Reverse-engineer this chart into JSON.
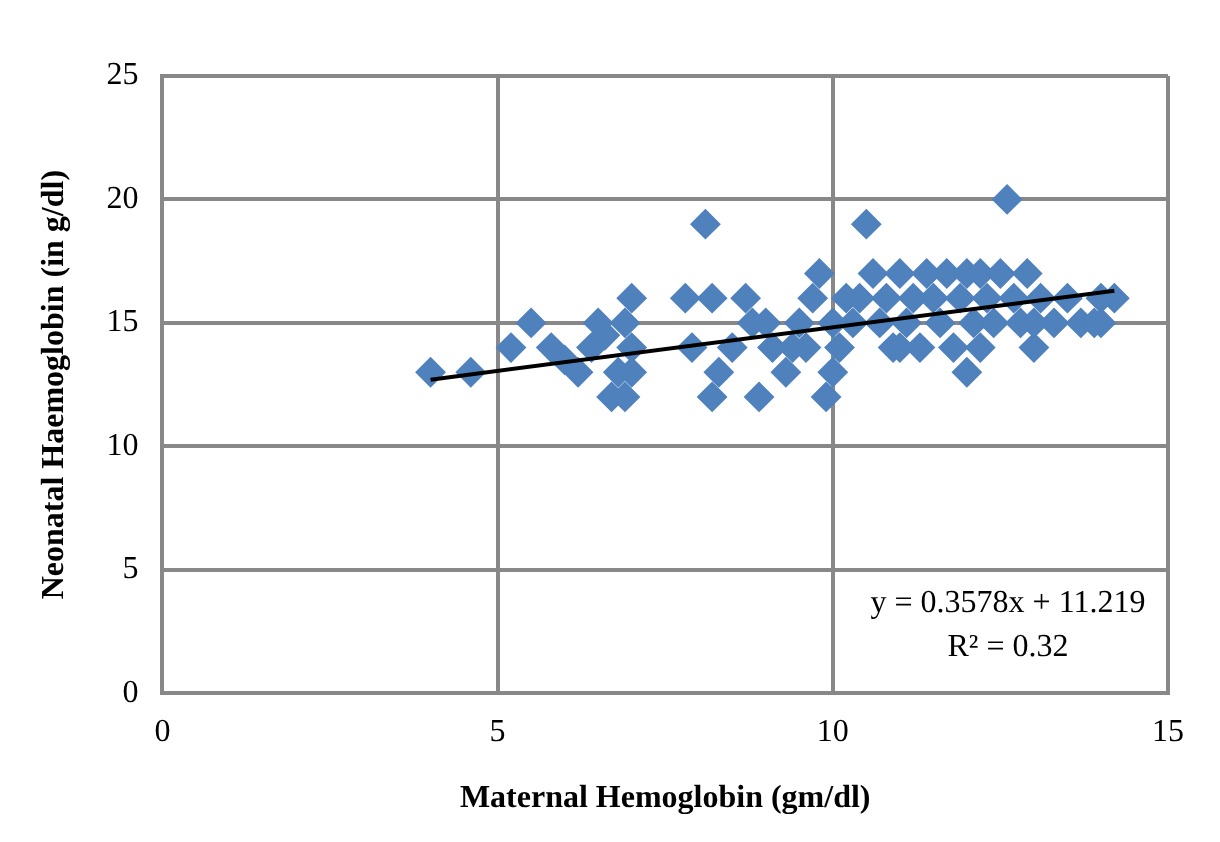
{
  "chart_data": {
    "type": "scatter",
    "xlabel": "Maternal Hemoglobin (gm/dl)",
    "ylabel": "Neonatal Haemoglobin (in g/dl)",
    "xlim": [
      0,
      15
    ],
    "xticks": [
      0,
      5,
      10,
      15
    ],
    "ylim": [
      0,
      25
    ],
    "yticks": [
      0,
      5,
      10,
      15,
      20,
      25
    ],
    "grid": true,
    "legend": false,
    "marker": "diamond",
    "annotations": [
      "y = 0.3578x + 11.219",
      "R² = 0.32"
    ],
    "series": [
      {
        "type": "scatter",
        "color": "#4f81bd",
        "x": [
          4.0,
          4.6,
          5.2,
          5.5,
          5.8,
          6.0,
          6.2,
          6.4,
          6.5,
          6.6,
          6.7,
          6.8,
          6.9,
          7.0,
          7.0,
          7.0,
          6.9,
          7.8,
          7.9,
          8.1,
          8.2,
          8.2,
          8.3,
          8.5,
          8.7,
          8.9,
          9.0,
          9.1,
          9.3,
          9.5,
          9.6,
          9.7,
          9.8,
          9.9,
          10.0,
          10.0,
          10.1,
          10.2,
          10.3,
          10.5,
          10.6,
          10.7,
          10.8,
          10.9,
          11.0,
          11.1,
          11.2,
          11.3,
          11.4,
          11.5,
          11.6,
          11.7,
          11.8,
          11.9,
          12.0,
          12.0,
          12.1,
          12.2,
          12.3,
          12.4,
          12.5,
          12.6,
          12.7,
          12.8,
          12.9,
          13.0,
          13.1,
          13.3,
          13.5,
          13.7,
          13.9,
          14.0,
          14.2,
          13.0,
          14.0,
          9.4,
          8.8,
          10.4,
          11.0,
          12.2
        ],
        "values": [
          13,
          13,
          14,
          15,
          14,
          13.5,
          13,
          14,
          15,
          14.5,
          12,
          13,
          12,
          16,
          14,
          13,
          15,
          16,
          14,
          19,
          16,
          12,
          13,
          14,
          16,
          12,
          15,
          14,
          13,
          15,
          14,
          16,
          17,
          12,
          13,
          15,
          14,
          16,
          15,
          19,
          17,
          15,
          16,
          14,
          17,
          15,
          16,
          14,
          17,
          16,
          15,
          17,
          14,
          16,
          17,
          13,
          15,
          17,
          16,
          15,
          17,
          20,
          16,
          15,
          17,
          14,
          16,
          15,
          16,
          15,
          15,
          16,
          16,
          15,
          15,
          14,
          15,
          16,
          14,
          14
        ]
      },
      {
        "type": "line",
        "color": "#000000",
        "x": [
          4.0,
          14.2
        ],
        "values": [
          12.7,
          16.3
        ],
        "marker": "none"
      }
    ]
  }
}
